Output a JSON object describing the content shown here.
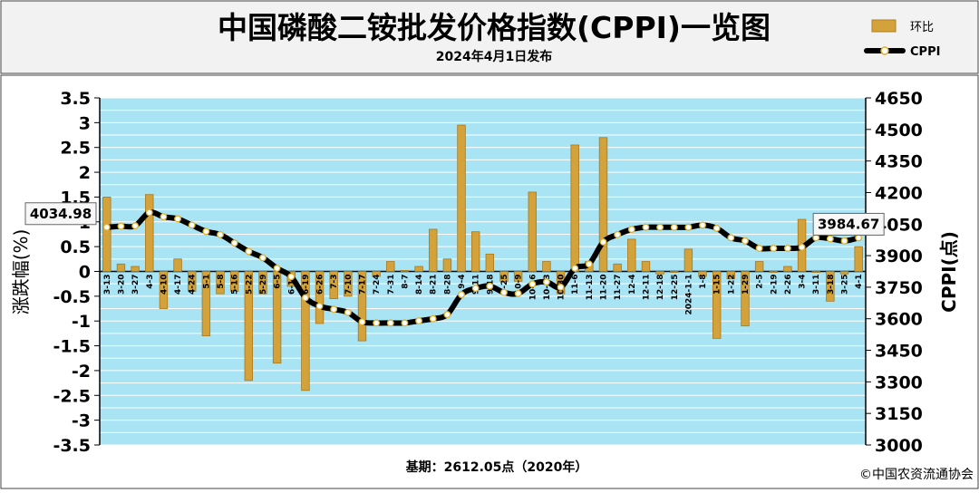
{
  "header": {
    "title": "中国磷酸二铵批发价格指数(CPPI)一览图",
    "subtitle": "2024年4月1日发布"
  },
  "footer": {
    "base_note": "基期：2612.05点（2020年）",
    "copyright": "©中国农资流通协会"
  },
  "colors": {
    "bar": "#d4a23a",
    "line": "#000000",
    "marker_fill": "#ffffff",
    "marker_edge": "#e0b030",
    "grid_fill": "#a9e4f5",
    "grid_line": "#ffffff"
  },
  "chart_data": {
    "type": "bar",
    "legend_position": "top-right",
    "ylabel": "涨跌幅(%)",
    "y2label": "CPPI(点)",
    "ylim": [
      -3.5,
      3.5
    ],
    "y_ticks": [
      "3.5",
      "3",
      "2.5",
      "2",
      "1.5",
      "1",
      "0.5",
      "0",
      "-0.5",
      "-1",
      "-1.5",
      "-2",
      "-2.5",
      "-3",
      "-3.5"
    ],
    "y2lim": [
      3000,
      4650
    ],
    "y2_ticks": [
      "4650",
      "4500",
      "4350",
      "4200",
      "4050",
      "3900",
      "3750",
      "3600",
      "3450",
      "3300",
      "3150",
      "3000"
    ],
    "categories": [
      "3-13",
      "3-20",
      "3-27",
      "4-3",
      "4-10",
      "4-17",
      "4-24",
      "5-1",
      "5-8",
      "5-16",
      "5-22",
      "5-29",
      "6-5",
      "6-12",
      "6-19",
      "6-26",
      "7-3",
      "7-10",
      "7-17",
      "7-24",
      "7-31",
      "8-7",
      "8-14",
      "8-21",
      "8-28",
      "9-4",
      "9-11",
      "9-18",
      "9-25",
      "10-9",
      "10-16",
      "10-23",
      "10-30",
      "11-6",
      "11-13",
      "11-20",
      "11-27",
      "12-4",
      "12-11",
      "12-18",
      "12-25",
      "2024-1-1",
      "1-8",
      "1-15",
      "1-22",
      "1-29",
      "2-5",
      "2-19",
      "2-26",
      "3-4",
      "3-11",
      "3-18",
      "3-25",
      "4-1"
    ],
    "series": [
      {
        "name": "环比",
        "type": "bar",
        "axis": "left",
        "values": [
          1.5,
          0.15,
          0.1,
          1.55,
          -0.75,
          0.25,
          -0.4,
          -1.3,
          -0.45,
          -0.4,
          -2.2,
          -0.45,
          -1.85,
          -0.3,
          -2.4,
          -1.05,
          -0.55,
          -0.5,
          -1.4,
          -0.1,
          0.2,
          0.02,
          0.1,
          0.85,
          0.25,
          2.95,
          0.8,
          0.35,
          -0.2,
          -0.2,
          1.6,
          0.2,
          -0.45,
          2.55,
          0.2,
          2.7,
          0.15,
          0.65,
          0.2,
          -0.05,
          -0.02,
          0.45,
          -0.1,
          -1.35,
          -0.15,
          -1.1,
          0.2,
          -0.02,
          0.1,
          1.05,
          -0.02,
          -0.6,
          -0.05,
          0.5
        ]
      },
      {
        "name": "CPPI",
        "type": "line",
        "axis": "right",
        "values": [
          4034.98,
          4040,
          4042,
          4105,
          4085,
          4075,
          4045,
          4015,
          4000,
          3960,
          3920,
          3890,
          3840,
          3800,
          3700,
          3660,
          3645,
          3630,
          3585,
          3580,
          3580,
          3580,
          3590,
          3600,
          3620,
          3715,
          3745,
          3755,
          3725,
          3720,
          3765,
          3775,
          3750,
          3840,
          3860,
          3965,
          4000,
          4025,
          4035,
          4035,
          4035,
          4035,
          4045,
          4030,
          3985,
          3970,
          3935,
          3935,
          3935,
          3940,
          3985,
          3980,
          3970,
          3984.67
        ]
      }
    ],
    "annotations": [
      {
        "label": "4034.98",
        "category": "3-13"
      },
      {
        "label": "3984.67",
        "category": "4-1"
      }
    ]
  }
}
